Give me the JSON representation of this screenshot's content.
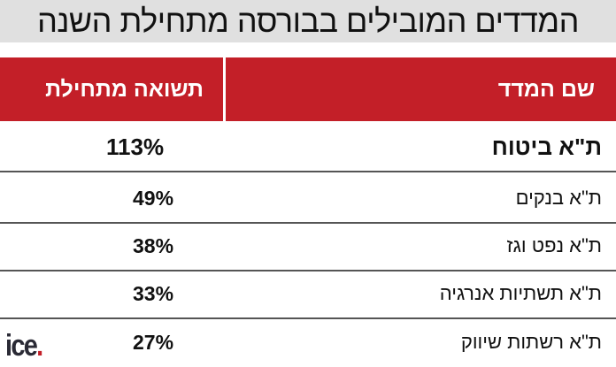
{
  "title": "המדדים המובילים בבורסה מתחילת השנה",
  "columns": {
    "name": "שם המדד",
    "return": "תשואה מתחילת השנה"
  },
  "rows": [
    {
      "name": "ת\"א ביטוח",
      "value": "113%"
    },
    {
      "name": "ת\"א בנקים",
      "value": "49%"
    },
    {
      "name": "ת\"א נפט וגז",
      "value": "38%"
    },
    {
      "name": "ת\"א תשתיות אנרגיה",
      "value": "33%"
    },
    {
      "name": "ת\"א רשתות שיווק",
      "value": "27%"
    }
  ],
  "logo": "ice.",
  "colors": {
    "header": "#c31f28",
    "title_bg": "#e0e0e0"
  }
}
